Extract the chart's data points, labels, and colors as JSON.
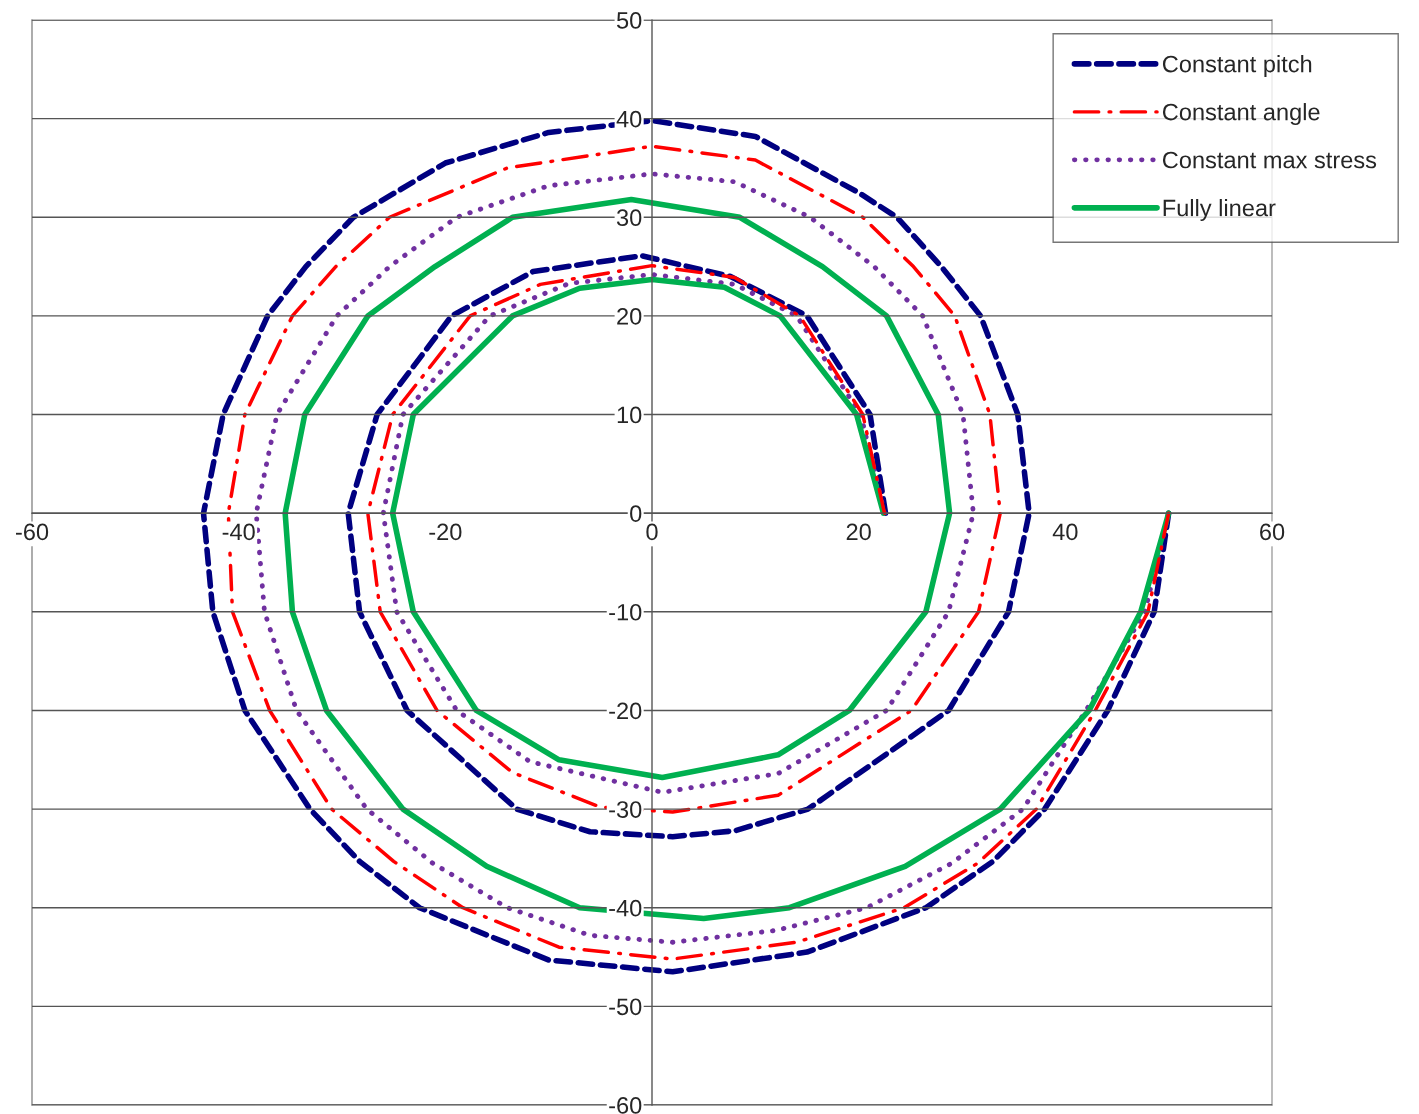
{
  "chart_data": {
    "type": "line",
    "xlim": [
      -60,
      60
    ],
    "ylim": [
      -60,
      50
    ],
    "xticks": [
      -60,
      -40,
      -20,
      0,
      20,
      40,
      60
    ],
    "yticks": [
      -60,
      -50,
      -40,
      -30,
      -20,
      -10,
      0,
      10,
      20,
      30,
      40,
      50
    ],
    "grid": "y",
    "legend": "top right",
    "series": [
      {
        "name": "Constant pitch",
        "color": "#000080",
        "line_style": "dashed",
        "x": [
          50,
          48.6,
          44.1,
          38.0,
          33,
          26.5,
          15,
          2,
          -10,
          -22.5,
          -28.3,
          -33.1,
          -39.4,
          -42.5,
          -43.4,
          -41.5,
          -37.2,
          -33.5,
          -28.9,
          -20,
          -10,
          0,
          10,
          20,
          23.7,
          28,
          31.8,
          35.4,
          36.5,
          34.5,
          28.7,
          15.1,
          8,
          2,
          -6,
          -13.1,
          -23.7,
          -28.3,
          -29.4,
          -26.6,
          -19.4,
          -11.5,
          -1,
          7.6,
          15.0,
          21.1,
          22.6
        ],
        "values": [
          0,
          -10,
          -20,
          -30,
          -35.3,
          -40,
          -44.5,
          -46.5,
          -45.3,
          -40,
          -35.3,
          -30,
          -20,
          -10,
          0,
          10,
          20,
          25,
          30,
          35.5,
          38.6,
          39.8,
          38.2,
          32.5,
          30,
          25,
          20,
          10,
          0,
          -10,
          -20,
          -30,
          -32.2,
          -32.8,
          -32.3,
          -30,
          -20,
          -10,
          0,
          10,
          20,
          24.5,
          26.1,
          24.0,
          20,
          10,
          0
        ]
      },
      {
        "name": "Constant angle",
        "color": "#ff0000",
        "line_style": "dashdot",
        "x": [
          50,
          48.0,
          42.9,
          37.2,
          31.5,
          24.4,
          14,
          2,
          -9,
          -18.3,
          -25,
          -31.0,
          -37.0,
          -40.6,
          -41.0,
          -39.4,
          -34.8,
          -30.6,
          -25.4,
          -14,
          0,
          10,
          20.4,
          25.3,
          29.3,
          32.7,
          33.7,
          31.6,
          25.1,
          12.2,
          2,
          -5,
          -13.5,
          -20.8,
          -26.3,
          -27.5,
          -25.1,
          -17.6,
          -10.8,
          0,
          8,
          14.3,
          20.4,
          22.5
        ],
        "values": [
          0,
          -10,
          -20,
          -30,
          -35.5,
          -40,
          -43.5,
          -45.2,
          -44,
          -40,
          -35.3,
          -30,
          -20,
          -10,
          0,
          10,
          20,
          25,
          30,
          35,
          37.2,
          35.8,
          30,
          25,
          20,
          10,
          0,
          -10,
          -20,
          -28.6,
          -30.3,
          -29.8,
          -26.3,
          -20,
          -10,
          0,
          10,
          20,
          23.2,
          25.1,
          23.9,
          20,
          10,
          0
        ]
      },
      {
        "name": "Constant max stress",
        "color": "#7030a0",
        "line_style": "dotted",
        "x": [
          50,
          47.7,
          42.0,
          35.9,
          29,
          20.8,
          12,
          2,
          -6,
          -14.0,
          -21.2,
          -27.6,
          -34.4,
          -37.5,
          -38.3,
          -36.3,
          -30.5,
          -25.4,
          -18.9,
          -10,
          0,
          8,
          15.3,
          21.5,
          26.2,
          30.1,
          31.1,
          28.7,
          22.7,
          12.2,
          1,
          -11.8,
          -18.9,
          -24.7,
          -26.0,
          -24.1,
          -15.7,
          -8,
          0,
          8,
          14.0,
          20.2,
          22.5
        ],
        "values": [
          0,
          -10,
          -20,
          -30,
          -35.5,
          -40,
          -42.3,
          -43.5,
          -42.8,
          -40,
          -35.5,
          -30,
          -20,
          -10,
          0,
          10,
          20,
          25,
          30,
          33.2,
          34.4,
          33.6,
          30,
          25,
          20,
          10,
          0,
          -10,
          -20,
          -26.4,
          -28.3,
          -25.2,
          -20,
          -10,
          0,
          10,
          20,
          23.3,
          24.2,
          23.2,
          20,
          10,
          0
        ]
      },
      {
        "name": "Fully linear",
        "color": "#00b050",
        "line_style": "solid",
        "x": [
          50,
          47.3,
          42.3,
          33.7,
          24.5,
          13.3,
          5,
          -7.0,
          -16,
          -24.1,
          -31.5,
          -34.8,
          -35.5,
          -33.6,
          -27.5,
          -21,
          -13.5,
          -2,
          8.5,
          16.5,
          22.7,
          27.7,
          28.8,
          26.5,
          19.1,
          12.2,
          1,
          -9,
          -17.0,
          -23.1,
          -25.1,
          -23.1,
          -13.5,
          -7,
          0,
          7,
          12.4,
          19.8,
          22.4
        ],
        "values": [
          0,
          -10,
          -20,
          -30,
          -35.8,
          -40,
          -41.1,
          -40,
          -35.8,
          -30,
          -20,
          -10,
          0,
          10,
          20,
          25,
          30,
          31.8,
          30,
          25,
          20,
          10,
          0,
          -10,
          -20,
          -24.5,
          -26.8,
          -25,
          -20,
          -10,
          0,
          10,
          20,
          22.8,
          23.7,
          22.9,
          20,
          10,
          0
        ]
      }
    ]
  }
}
